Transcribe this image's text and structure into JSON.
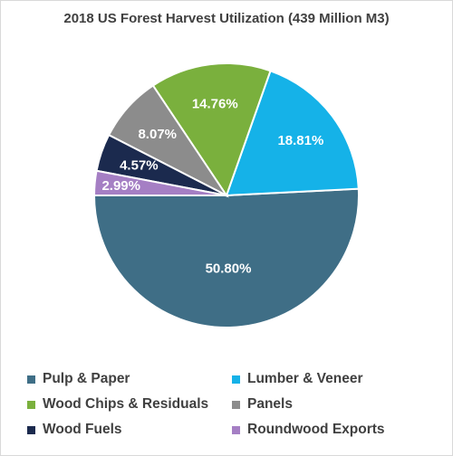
{
  "chart_data": {
    "type": "pie",
    "title": "2018 US Forest Harvest Utilization (439 Million M3)",
    "categories": [
      "Pulp & Paper",
      "Lumber & Veneer",
      "Wood Chips & Residuals",
      "Panels",
      "Wood Fuels",
      "Roundwood Exports"
    ],
    "values": [
      50.8,
      18.81,
      14.76,
      8.07,
      4.57,
      2.99
    ],
    "labels": [
      "50.80%",
      "18.81%",
      "14.76%",
      "8.07%",
      "4.57%",
      "2.99%"
    ],
    "colors": [
      "#3f6e86",
      "#15b2e8",
      "#7ab03d",
      "#8c8c8c",
      "#1b2a4e",
      "#a57fc4"
    ],
    "label_colors": [
      "#ffffff",
      "#ffffff",
      "#ffffff",
      "#ffffff",
      "#ffffff",
      "#ffffff"
    ],
    "legend_position": "bottom",
    "grid": false
  }
}
